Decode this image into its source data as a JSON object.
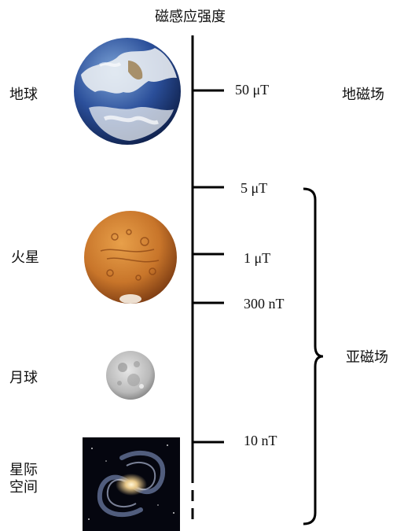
{
  "title": "磁感应强度",
  "bodies": [
    {
      "key": "earth",
      "label": "地球"
    },
    {
      "key": "mars",
      "label": "火星"
    },
    {
      "key": "moon",
      "label": "月球"
    },
    {
      "key": "space",
      "label_lines": [
        "星际",
        "空间"
      ]
    }
  ],
  "ticks": [
    {
      "label": "50 μT"
    },
    {
      "label": "5 μT"
    },
    {
      "label": "1 μT"
    },
    {
      "label": "300 nT"
    },
    {
      "label": "10 nT"
    }
  ],
  "fields": {
    "geomagnetic": "地磁场",
    "sub_magnetic": "亚磁场"
  },
  "colors": {
    "line": "#000000",
    "earth_ocean": "#2b4f9a",
    "mars": "#c8752a",
    "moon": "#b9b9b9",
    "space_bg": "#05060f"
  }
}
